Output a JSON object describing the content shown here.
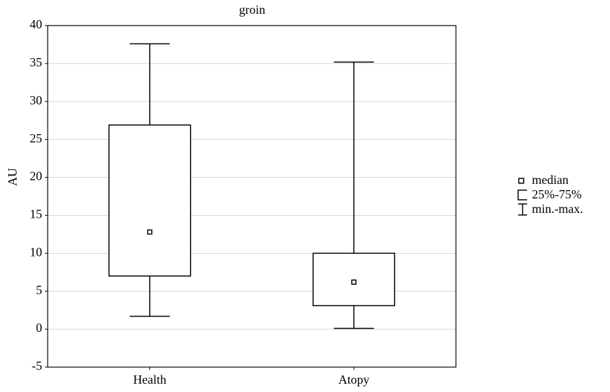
{
  "chart_data": {
    "type": "box",
    "title": "groin",
    "y_label": "AU",
    "categories": [
      "Health",
      "Atopy"
    ],
    "min": [
      1.7,
      0.1
    ],
    "q1": [
      7,
      3.1
    ],
    "median": [
      12.8,
      6.2
    ],
    "q3": [
      26.9,
      10
    ],
    "max": [
      37.6,
      35.2
    ],
    "color": "#000000",
    "ylim": [
      -5,
      40
    ],
    "yticks": [
      -5,
      0,
      5,
      10,
      15,
      20,
      25,
      30,
      35,
      40
    ],
    "grid": true,
    "legend": [
      "median",
      "25%-75%",
      "min.-max."
    ]
  }
}
